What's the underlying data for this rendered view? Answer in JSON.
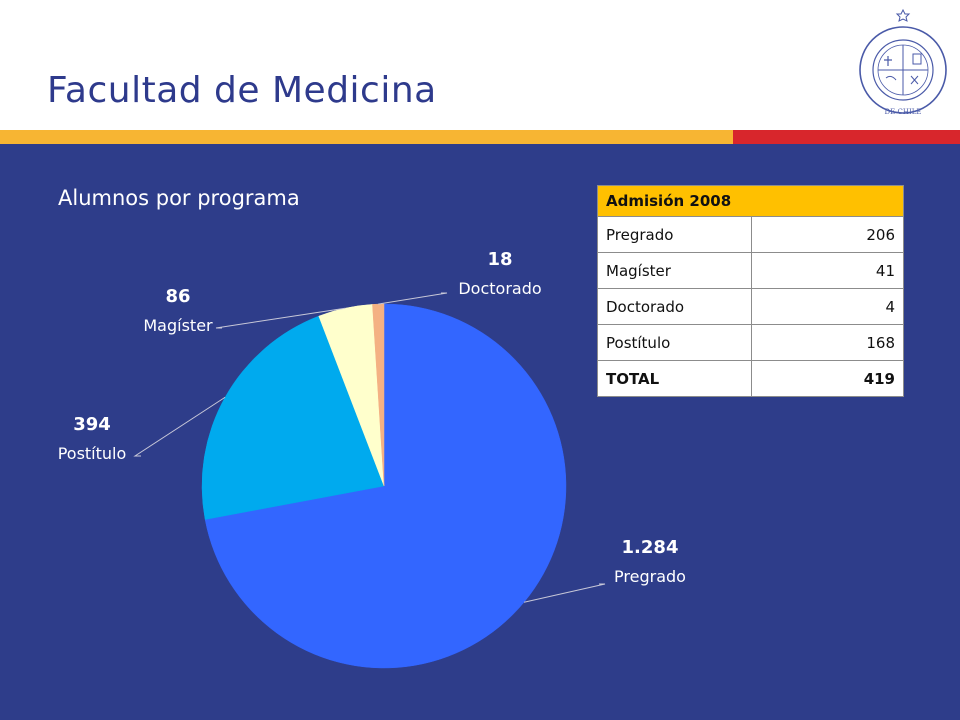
{
  "page": {
    "title": "Facultad de Medicina",
    "seal_text": "PONTIFICIA UNIVERSIDAD CATÓLICA DE CHILE"
  },
  "colors": {
    "background": "#2e3d8a",
    "title": "#2e3a8c",
    "stripe_yellow": "#f7b533",
    "stripe_red": "#d8262c",
    "table_header": "#ffc000"
  },
  "chart_data": {
    "type": "pie",
    "title": "Alumnos por programa",
    "start": "12 o'clock, clockwise",
    "slices": [
      {
        "label": "Pregrado",
        "value": 1284,
        "value_label": "1.284",
        "color": "#3366ff"
      },
      {
        "label": "Postítulo",
        "value": 394,
        "value_label": "394",
        "color": "#00aaee"
      },
      {
        "label": "Magíster",
        "value": 86,
        "value_label": "86",
        "color": "#ffffcc"
      },
      {
        "label": "Doctorado",
        "value": 18,
        "value_label": "18",
        "color": "#f4b183"
      }
    ]
  },
  "admission_table": {
    "header": "Admisión 2008",
    "rows": [
      {
        "label": "Pregrado",
        "value": "206"
      },
      {
        "label": "Magíster",
        "value": "41"
      },
      {
        "label": "Doctorado",
        "value": "4"
      },
      {
        "label": "Postítulo",
        "value": "168"
      }
    ],
    "total": {
      "label": "TOTAL",
      "value": "419"
    }
  }
}
